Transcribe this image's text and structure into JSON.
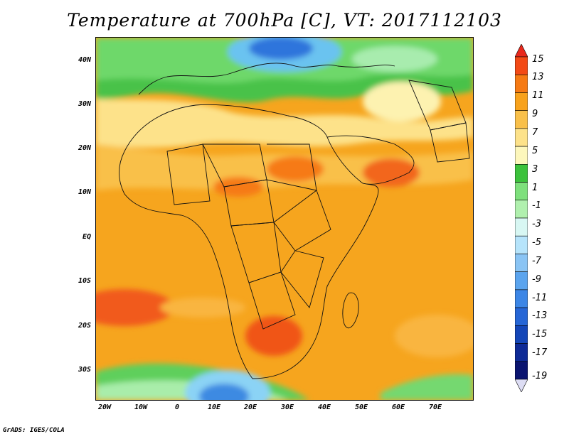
{
  "title": "Temperature at 700hPa [C], VT: 2017112103",
  "credit": "GrADS: IGES/COLA",
  "map": {
    "lat_labels": [
      "40N",
      "30N",
      "20N",
      "10N",
      "EQ",
      "10S",
      "20S",
      "30S"
    ],
    "lon_labels": [
      "20W",
      "10W",
      "0",
      "10E",
      "20E",
      "30E",
      "40E",
      "50E",
      "60E",
      "70E"
    ]
  },
  "colorbar": {
    "labels": [
      "15",
      "13",
      "11",
      "9",
      "7",
      "5",
      "3",
      "1",
      "-1",
      "-3",
      "-5",
      "-7",
      "-9",
      "-11",
      "-13",
      "-15",
      "-17",
      "-19"
    ],
    "colors": [
      "#e8281c",
      "#f34a16",
      "#f67a14",
      "#f8a21c",
      "#f9c04a",
      "#fde28a",
      "#fdf7bc",
      "#3cc23c",
      "#7ee07c",
      "#b0f0ae",
      "#d8f7f3",
      "#b6e4fb",
      "#8ac4f4",
      "#5ba4ee",
      "#3c86e6",
      "#2666d6",
      "#1446b8",
      "#0e2a96",
      "#0a1470",
      "#ddddf4"
    ]
  }
}
